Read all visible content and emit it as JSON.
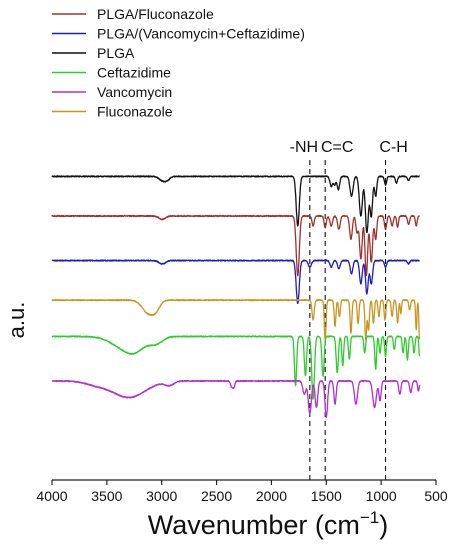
{
  "chart_data": {
    "type": "line",
    "xlabel": "Wavenumber (cm",
    "xlabel_sup": "−1",
    "xlabel_close": ")",
    "ylabel": "a.u.",
    "xlim": [
      4000,
      500
    ],
    "x_ticks": [
      {
        "value": 4000,
        "label": "4000"
      },
      {
        "value": 3500,
        "label": "3500"
      },
      {
        "value": 3000,
        "label": "3000"
      },
      {
        "value": 2500,
        "label": "2500"
      },
      {
        "value": 2000,
        "label": "2000"
      },
      {
        "value": 1500,
        "label": "1500"
      },
      {
        "value": 1000,
        "label": "1000"
      },
      {
        "value": 500,
        "label": "500"
      }
    ],
    "legend": [
      {
        "name": "PLGA/Fluconazole",
        "color": "#a0302a"
      },
      {
        "name": "PLGA/(Vancomycin+Ceftazidime)",
        "color": "#1c1cbf"
      },
      {
        "name": "PLGA",
        "color": "#111111"
      },
      {
        "name": "Ceftazidime",
        "color": "#2ecc2e"
      },
      {
        "name": "Vancomycin",
        "color": "#b030d0"
      },
      {
        "name": "Fluconazole",
        "color": "#c8961e"
      }
    ],
    "annotations": [
      {
        "label": "-NH",
        "x": 1650
      },
      {
        "label": "C=C",
        "x": 1510
      },
      {
        "label": "C-H",
        "x": 960
      }
    ],
    "series": [
      {
        "name": "PLGA",
        "color": "#111111",
        "baseline": 0.92,
        "features": [
          [
            2995,
            0.012,
            30
          ],
          [
            2950,
            0.01,
            25
          ],
          [
            1760,
            0.15,
            14
          ],
          [
            1455,
            0.03,
            12
          ],
          [
            1425,
            0.025,
            10
          ],
          [
            1390,
            0.04,
            12
          ],
          [
            1270,
            0.06,
            14
          ],
          [
            1185,
            0.12,
            14
          ],
          [
            1130,
            0.17,
            14
          ],
          [
            1090,
            0.12,
            12
          ],
          [
            1050,
            0.06,
            10
          ],
          [
            960,
            0.025,
            10
          ],
          [
            860,
            0.02,
            10
          ],
          [
            750,
            0.012,
            10
          ]
        ]
      },
      {
        "name": "PLGA/Fluconazole",
        "color": "#a0302a",
        "baseline": 0.8,
        "features": [
          [
            2995,
            0.01,
            30
          ],
          [
            1760,
            0.18,
            14
          ],
          [
            1620,
            0.03,
            10
          ],
          [
            1510,
            0.035,
            10
          ],
          [
            1455,
            0.03,
            12
          ],
          [
            1385,
            0.04,
            12
          ],
          [
            1275,
            0.07,
            12
          ],
          [
            1220,
            0.05,
            10
          ],
          [
            1185,
            0.13,
            12
          ],
          [
            1135,
            0.18,
            12
          ],
          [
            1090,
            0.14,
            12
          ],
          [
            1050,
            0.07,
            10
          ],
          [
            960,
            0.04,
            10
          ],
          [
            900,
            0.03,
            10
          ],
          [
            850,
            0.035,
            8
          ],
          [
            750,
            0.025,
            10
          ],
          [
            680,
            0.03,
            8
          ]
        ]
      },
      {
        "name": "PLGA/(Vancomycin+Ceftazidime)",
        "color": "#1c1cbf",
        "baseline": 0.665,
        "features": [
          [
            2995,
            0.01,
            30
          ],
          [
            1760,
            0.13,
            14
          ],
          [
            1650,
            0.02,
            14
          ],
          [
            1455,
            0.02,
            12
          ],
          [
            1385,
            0.025,
            12
          ],
          [
            1270,
            0.04,
            12
          ],
          [
            1185,
            0.07,
            12
          ],
          [
            1130,
            0.1,
            12
          ],
          [
            1090,
            0.07,
            12
          ],
          [
            960,
            0.02,
            10
          ],
          [
            750,
            0.01,
            10
          ]
        ]
      },
      {
        "name": "Fluconazole",
        "color": "#c8961e",
        "baseline": 0.545,
        "features": [
          [
            3120,
            0.04,
            55
          ],
          [
            3050,
            0.02,
            35
          ],
          [
            1620,
            0.06,
            10
          ],
          [
            1510,
            0.12,
            8
          ],
          [
            1420,
            0.08,
            8
          ],
          [
            1380,
            0.05,
            8
          ],
          [
            1275,
            0.1,
            8
          ],
          [
            1210,
            0.07,
            8
          ],
          [
            1140,
            0.12,
            8
          ],
          [
            1115,
            0.09,
            8
          ],
          [
            1070,
            0.07,
            8
          ],
          [
            1020,
            0.05,
            8
          ],
          [
            965,
            0.06,
            8
          ],
          [
            900,
            0.05,
            8
          ],
          [
            850,
            0.07,
            8
          ],
          [
            820,
            0.04,
            6
          ],
          [
            740,
            0.03,
            8
          ],
          [
            680,
            0.09,
            6
          ],
          [
            650,
            0.12,
            6
          ]
        ]
      },
      {
        "name": "Ceftazidime",
        "color": "#2ecc2e",
        "baseline": 0.435,
        "features": [
          [
            3400,
            0.02,
            100
          ],
          [
            3250,
            0.045,
            95
          ],
          [
            3050,
            0.02,
            60
          ],
          [
            1780,
            0.15,
            10
          ],
          [
            1690,
            0.12,
            10
          ],
          [
            1620,
            0.19,
            12
          ],
          [
            1530,
            0.12,
            10
          ],
          [
            1400,
            0.11,
            10
          ],
          [
            1350,
            0.09,
            8
          ],
          [
            1290,
            0.07,
            8
          ],
          [
            1150,
            0.05,
            8
          ],
          [
            1050,
            0.1,
            8
          ],
          [
            1010,
            0.05,
            8
          ],
          [
            960,
            0.06,
            8
          ],
          [
            880,
            0.04,
            8
          ],
          [
            800,
            0.05,
            8
          ],
          [
            760,
            0.07,
            8
          ],
          [
            700,
            0.05,
            8
          ],
          [
            650,
            0.06,
            6
          ]
        ]
      },
      {
        "name": "Vancomycin",
        "color": "#b030d0",
        "baseline": 0.3,
        "features": [
          [
            3600,
            0.01,
            100
          ],
          [
            3300,
            0.05,
            150
          ],
          [
            2930,
            0.012,
            40
          ],
          [
            2360,
            0.02,
            12
          ],
          [
            2340,
            0.015,
            8
          ],
          [
            1700,
            0.04,
            14
          ],
          [
            1650,
            0.1,
            14
          ],
          [
            1590,
            0.08,
            12
          ],
          [
            1500,
            0.11,
            12
          ],
          [
            1420,
            0.07,
            10
          ],
          [
            1230,
            0.07,
            14
          ],
          [
            1060,
            0.08,
            16
          ],
          [
            1010,
            0.06,
            10
          ],
          [
            830,
            0.04,
            10
          ],
          [
            730,
            0.035,
            10
          ],
          [
            660,
            0.03,
            8
          ]
        ]
      }
    ]
  }
}
